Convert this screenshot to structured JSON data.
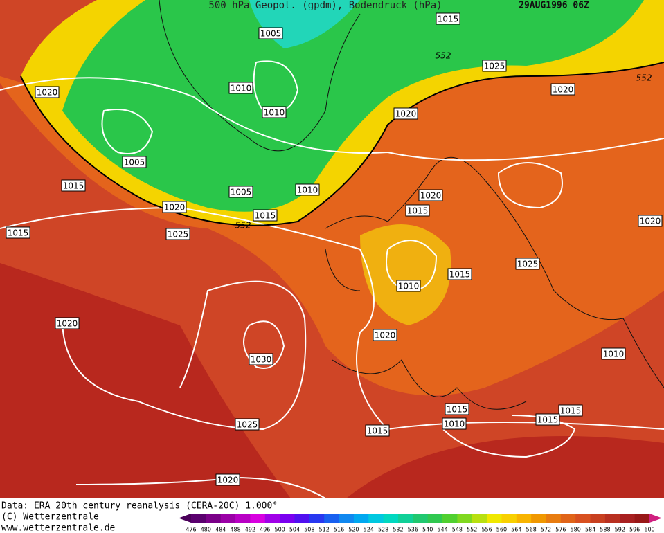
{
  "header": {
    "title": "500 hPa Geopot. (gpdm), Bodendruck (hPa)",
    "date": "29AUG1996 06Z"
  },
  "isobar_labels": [
    "1005",
    "1015",
    "1025",
    "1020",
    "1010",
    "1010",
    "1020",
    "1020",
    "1005",
    "1015",
    "1005",
    "1010",
    "1020",
    "1020",
    "1015",
    "1015",
    "1020",
    "1015",
    "1025",
    "1025",
    "1015",
    "1010",
    "1020",
    "1020",
    "1010",
    "1030",
    "1015",
    "1015",
    "1015",
    "1025",
    "1010",
    "1015",
    "1020"
  ],
  "height_labels": [
    "552",
    "552",
    "552"
  ],
  "footer": {
    "source": "Data: ERA 20th century reanalysis (CERA-20C) 1.000°",
    "copyright": "(C) Wetterzentrale",
    "url": "www.wetterzentrale.de"
  },
  "colorbar": {
    "labels": [
      476,
      480,
      484,
      488,
      492,
      496,
      500,
      504,
      508,
      512,
      516,
      520,
      524,
      528,
      532,
      536,
      540,
      544,
      548,
      552,
      556,
      560,
      564,
      568,
      572,
      576,
      580,
      584,
      588,
      592,
      596,
      600
    ]
  }
}
